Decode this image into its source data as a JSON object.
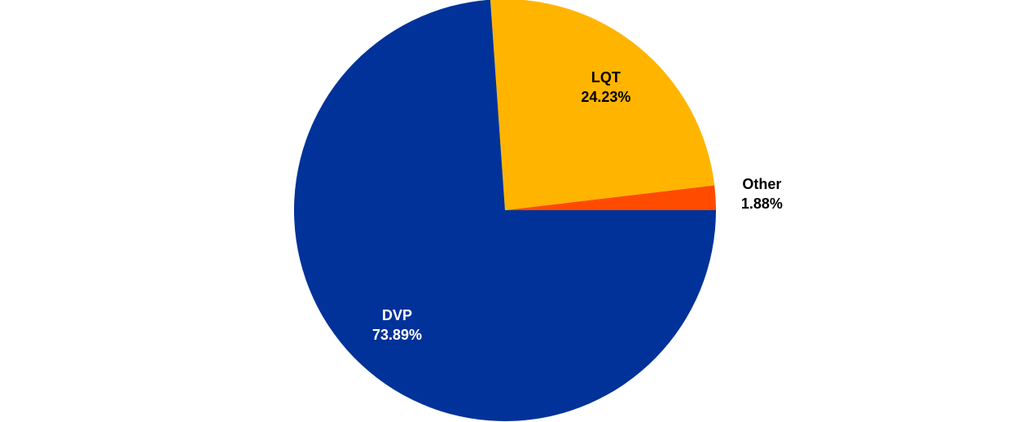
{
  "chart_data": {
    "type": "pie",
    "categories": [
      "Other",
      "LQT",
      "DVP"
    ],
    "values": [
      1.88,
      24.23,
      73.89
    ],
    "value_labels": [
      "1.88%",
      "24.23%",
      "73.89%"
    ],
    "colors": [
      "#ff4b00",
      "#ffb400",
      "#003299"
    ]
  }
}
